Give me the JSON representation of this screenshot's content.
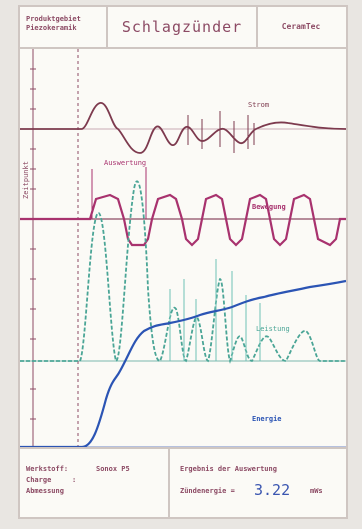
{
  "header": {
    "program_line1": "Produktgebiet",
    "program_line2": "Piezokeramik",
    "title": "Schlagzünder",
    "brand": "CeramTec"
  },
  "chart_labels": {
    "strom": "Strom",
    "auswertung": "Auswertung",
    "bewegung": "Bewegung",
    "leistung": "Leistung",
    "energie": "Energie",
    "y_axis": "Zeitpunkt"
  },
  "colors": {
    "strom": "#7d3a4e",
    "bewegung": "#a8326e",
    "leistung": "#4aa596",
    "energie": "#2b54b4",
    "frame": "#8c4a64"
  },
  "footer": {
    "material_label": "Werkstoff:",
    "material_value": "Sonox P5",
    "charge_label": "Charge",
    "charge_value": ":",
    "dimension_label": "Abmessung",
    "result_heading": "Ergebnis der Auswertung",
    "result_label": "Zündenergie =",
    "result_value": "3.22",
    "result_unit": "mWs"
  }
}
